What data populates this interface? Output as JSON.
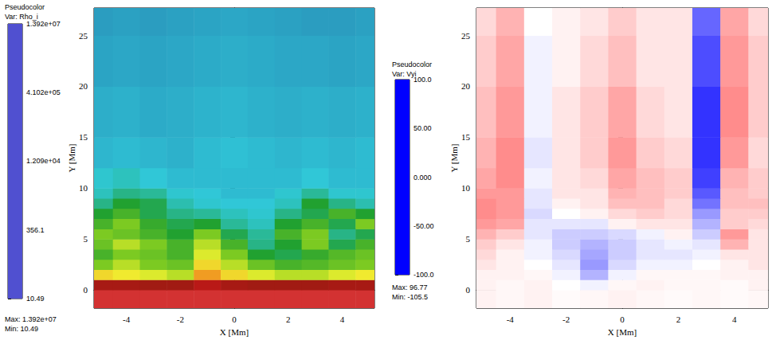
{
  "chart_data": [
    {
      "type": "heatmap",
      "xlabel": "X [Mm]",
      "ylabel": "Y [Mm]",
      "xlim": [
        -5.2,
        5.2
      ],
      "ylim": [
        -1.8,
        27.7
      ],
      "xticks": [
        -4,
        -2,
        0,
        2,
        4
      ],
      "yticks": [
        0,
        5,
        10,
        15,
        20,
        25
      ],
      "x_edges": [
        -5.2,
        -4.5,
        -3.5,
        -2.5,
        -1.5,
        -0.5,
        0.5,
        1.5,
        2.5,
        3.5,
        4.5,
        5.2
      ],
      "y_edges": [
        -1.8,
        0,
        1,
        2,
        3,
        4,
        5,
        6,
        7,
        8,
        9,
        10,
        12,
        15,
        20,
        25,
        27.7
      ],
      "cells": [
        [
          5000000.0,
          5000000.0,
          5000000.0,
          5000000.0,
          5000000.0,
          5000000.0,
          5000000.0,
          5000000.0,
          5000000.0,
          5000000.0,
          5000000.0
        ],
        [
          1000000.0,
          1000000.0,
          800000.0,
          800000.0,
          2000000.0,
          1000000.0,
          800000.0,
          800000.0,
          800000.0,
          1000000.0,
          1000000.0
        ],
        [
          50000.0,
          40000.0,
          30000.0,
          20000.0,
          100000.0,
          50000.0,
          30000.0,
          20000.0,
          20000.0,
          30000.0,
          40000.0
        ],
        [
          10000.0,
          20000.0,
          10000.0,
          8000.0,
          50000.0,
          20000.0,
          8000.0,
          5000.0,
          6000.0,
          8000.0,
          10000.0
        ],
        [
          5000.0,
          10000.0,
          8000.0,
          5000.0,
          30000.0,
          10000.0,
          3000.0,
          2000.0,
          4000.0,
          6000.0,
          8000.0
        ],
        [
          8000.0,
          20000.0,
          10000.0,
          5000.0,
          20000.0,
          5000.0,
          1000.0,
          3000.0,
          10000.0,
          2000.0,
          5000.0
        ],
        [
          10000.0,
          8000.0,
          5000.0,
          3000.0,
          10000.0,
          2000.0,
          800,
          5000.0,
          10000.0,
          1000.0,
          2000.0
        ],
        [
          5000.0,
          10000.0,
          4000.0,
          2000.0,
          3000.0,
          800,
          500,
          3000.0,
          5000.0,
          2000.0,
          10000.0
        ],
        [
          3000.0,
          5000.0,
          2000.0,
          1000.0,
          800,
          500,
          400,
          1000.0,
          2000.0,
          5000.0,
          3000.0
        ],
        [
          1000.0,
          3000.0,
          2000.0,
          600,
          400,
          350,
          350,
          500,
          3000.0,
          1000.0,
          600
        ],
        [
          500,
          1000.0,
          800,
          400,
          350,
          300,
          300,
          400,
          800,
          400,
          400
        ],
        [
          400,
          500,
          350,
          300,
          300,
          300,
          300,
          300,
          350,
          300,
          300
        ],
        [
          280,
          300,
          280,
          260,
          300,
          320,
          300,
          280,
          300,
          280,
          300
        ],
        [
          250,
          260,
          240,
          250,
          270,
          280,
          260,
          250,
          260,
          250,
          260
        ],
        [
          220,
          230,
          220,
          230,
          240,
          250,
          240,
          230,
          230,
          220,
          230
        ],
        [
          200,
          210,
          200,
          210,
          220,
          230,
          220,
          210,
          200,
          200,
          210
        ]
      ],
      "colorbar": {
        "title": "Pseudocolor",
        "variable": "Var: Rho_i",
        "log": true,
        "range": [
          10.49,
          13920000
        ],
        "ticks": [
          {
            "value": 13920000,
            "label": "1.392e+07"
          },
          {
            "value": 410200,
            "label": "4.102e+05"
          },
          {
            "value": 12090,
            "label": "1.209e+04"
          },
          356.1,
          10.49
        ],
        "max_text": "Max: 1.392e+07",
        "min_text": "Min: 10.49"
      }
    },
    {
      "type": "heatmap",
      "xlabel": "X [Mm]",
      "ylabel": "Y [Mm]",
      "xlim": [
        -5.2,
        5.2
      ],
      "ylim": [
        -1.8,
        27.7
      ],
      "xticks": [
        -4,
        -2,
        0,
        2,
        4
      ],
      "yticks": [
        0,
        5,
        10,
        15,
        20,
        25
      ],
      "x_edges": [
        -5.2,
        -4.5,
        -3.5,
        -2.5,
        -1.5,
        -0.5,
        0.5,
        1.5,
        2.5,
        3.5,
        4.5,
        5.2
      ],
      "y_edges": [
        -1.8,
        0,
        1,
        2,
        3,
        4,
        5,
        6,
        7,
        8,
        9,
        10,
        12,
        15,
        20,
        25,
        27.7
      ],
      "cells": [
        [
          5,
          3,
          5,
          2,
          3,
          5,
          3,
          2,
          3,
          2,
          3
        ],
        [
          5,
          3,
          5,
          0,
          -5,
          3,
          5,
          3,
          3,
          2,
          5
        ],
        [
          5,
          5,
          3,
          -5,
          -30,
          -5,
          3,
          3,
          3,
          5,
          5
        ],
        [
          10,
          5,
          0,
          -10,
          -40,
          -15,
          -5,
          -5,
          0,
          5,
          10
        ],
        [
          15,
          5,
          -5,
          -15,
          -35,
          -20,
          -10,
          -10,
          -5,
          10,
          10
        ],
        [
          20,
          10,
          -5,
          -20,
          -30,
          -20,
          -10,
          -5,
          -10,
          30,
          10
        ],
        [
          30,
          20,
          -10,
          -20,
          -20,
          -15,
          -5,
          5,
          -20,
          40,
          10
        ],
        [
          40,
          35,
          -10,
          -10,
          -10,
          5,
          10,
          10,
          -30,
          20,
          15
        ],
        [
          45,
          40,
          -15,
          0,
          5,
          15,
          20,
          15,
          -40,
          20,
          20
        ],
        [
          45,
          40,
          -10,
          5,
          10,
          25,
          25,
          15,
          -55,
          25,
          25
        ],
        [
          40,
          40,
          -10,
          10,
          10,
          30,
          25,
          20,
          -65,
          25,
          20
        ],
        [
          35,
          45,
          -5,
          10,
          15,
          35,
          25,
          20,
          -75,
          30,
          20
        ],
        [
          30,
          45,
          -10,
          10,
          20,
          40,
          20,
          15,
          -80,
          40,
          15
        ],
        [
          25,
          40,
          -5,
          10,
          20,
          35,
          15,
          10,
          -80,
          45,
          20
        ],
        [
          20,
          35,
          -5,
          5,
          15,
          25,
          10,
          10,
          -70,
          40,
          20
        ],
        [
          15,
          30,
          0,
          5,
          10,
          20,
          10,
          10,
          -60,
          35,
          15
        ]
      ],
      "colorbar": {
        "title": "Pseudocolor",
        "variable": "Var: Vyi",
        "range": [
          -100,
          100
        ],
        "ticks": [
          {
            "value": 100,
            "label": "100.0"
          },
          {
            "value": 50,
            "label": "50.00"
          },
          {
            "value": 0,
            "label": "0.000"
          },
          {
            "value": -50,
            "label": "-50.00"
          },
          {
            "value": -100,
            "label": "-100.0"
          }
        ],
        "max_text": "Max: 96.77",
        "min_text": "Min: -105.5"
      }
    }
  ]
}
